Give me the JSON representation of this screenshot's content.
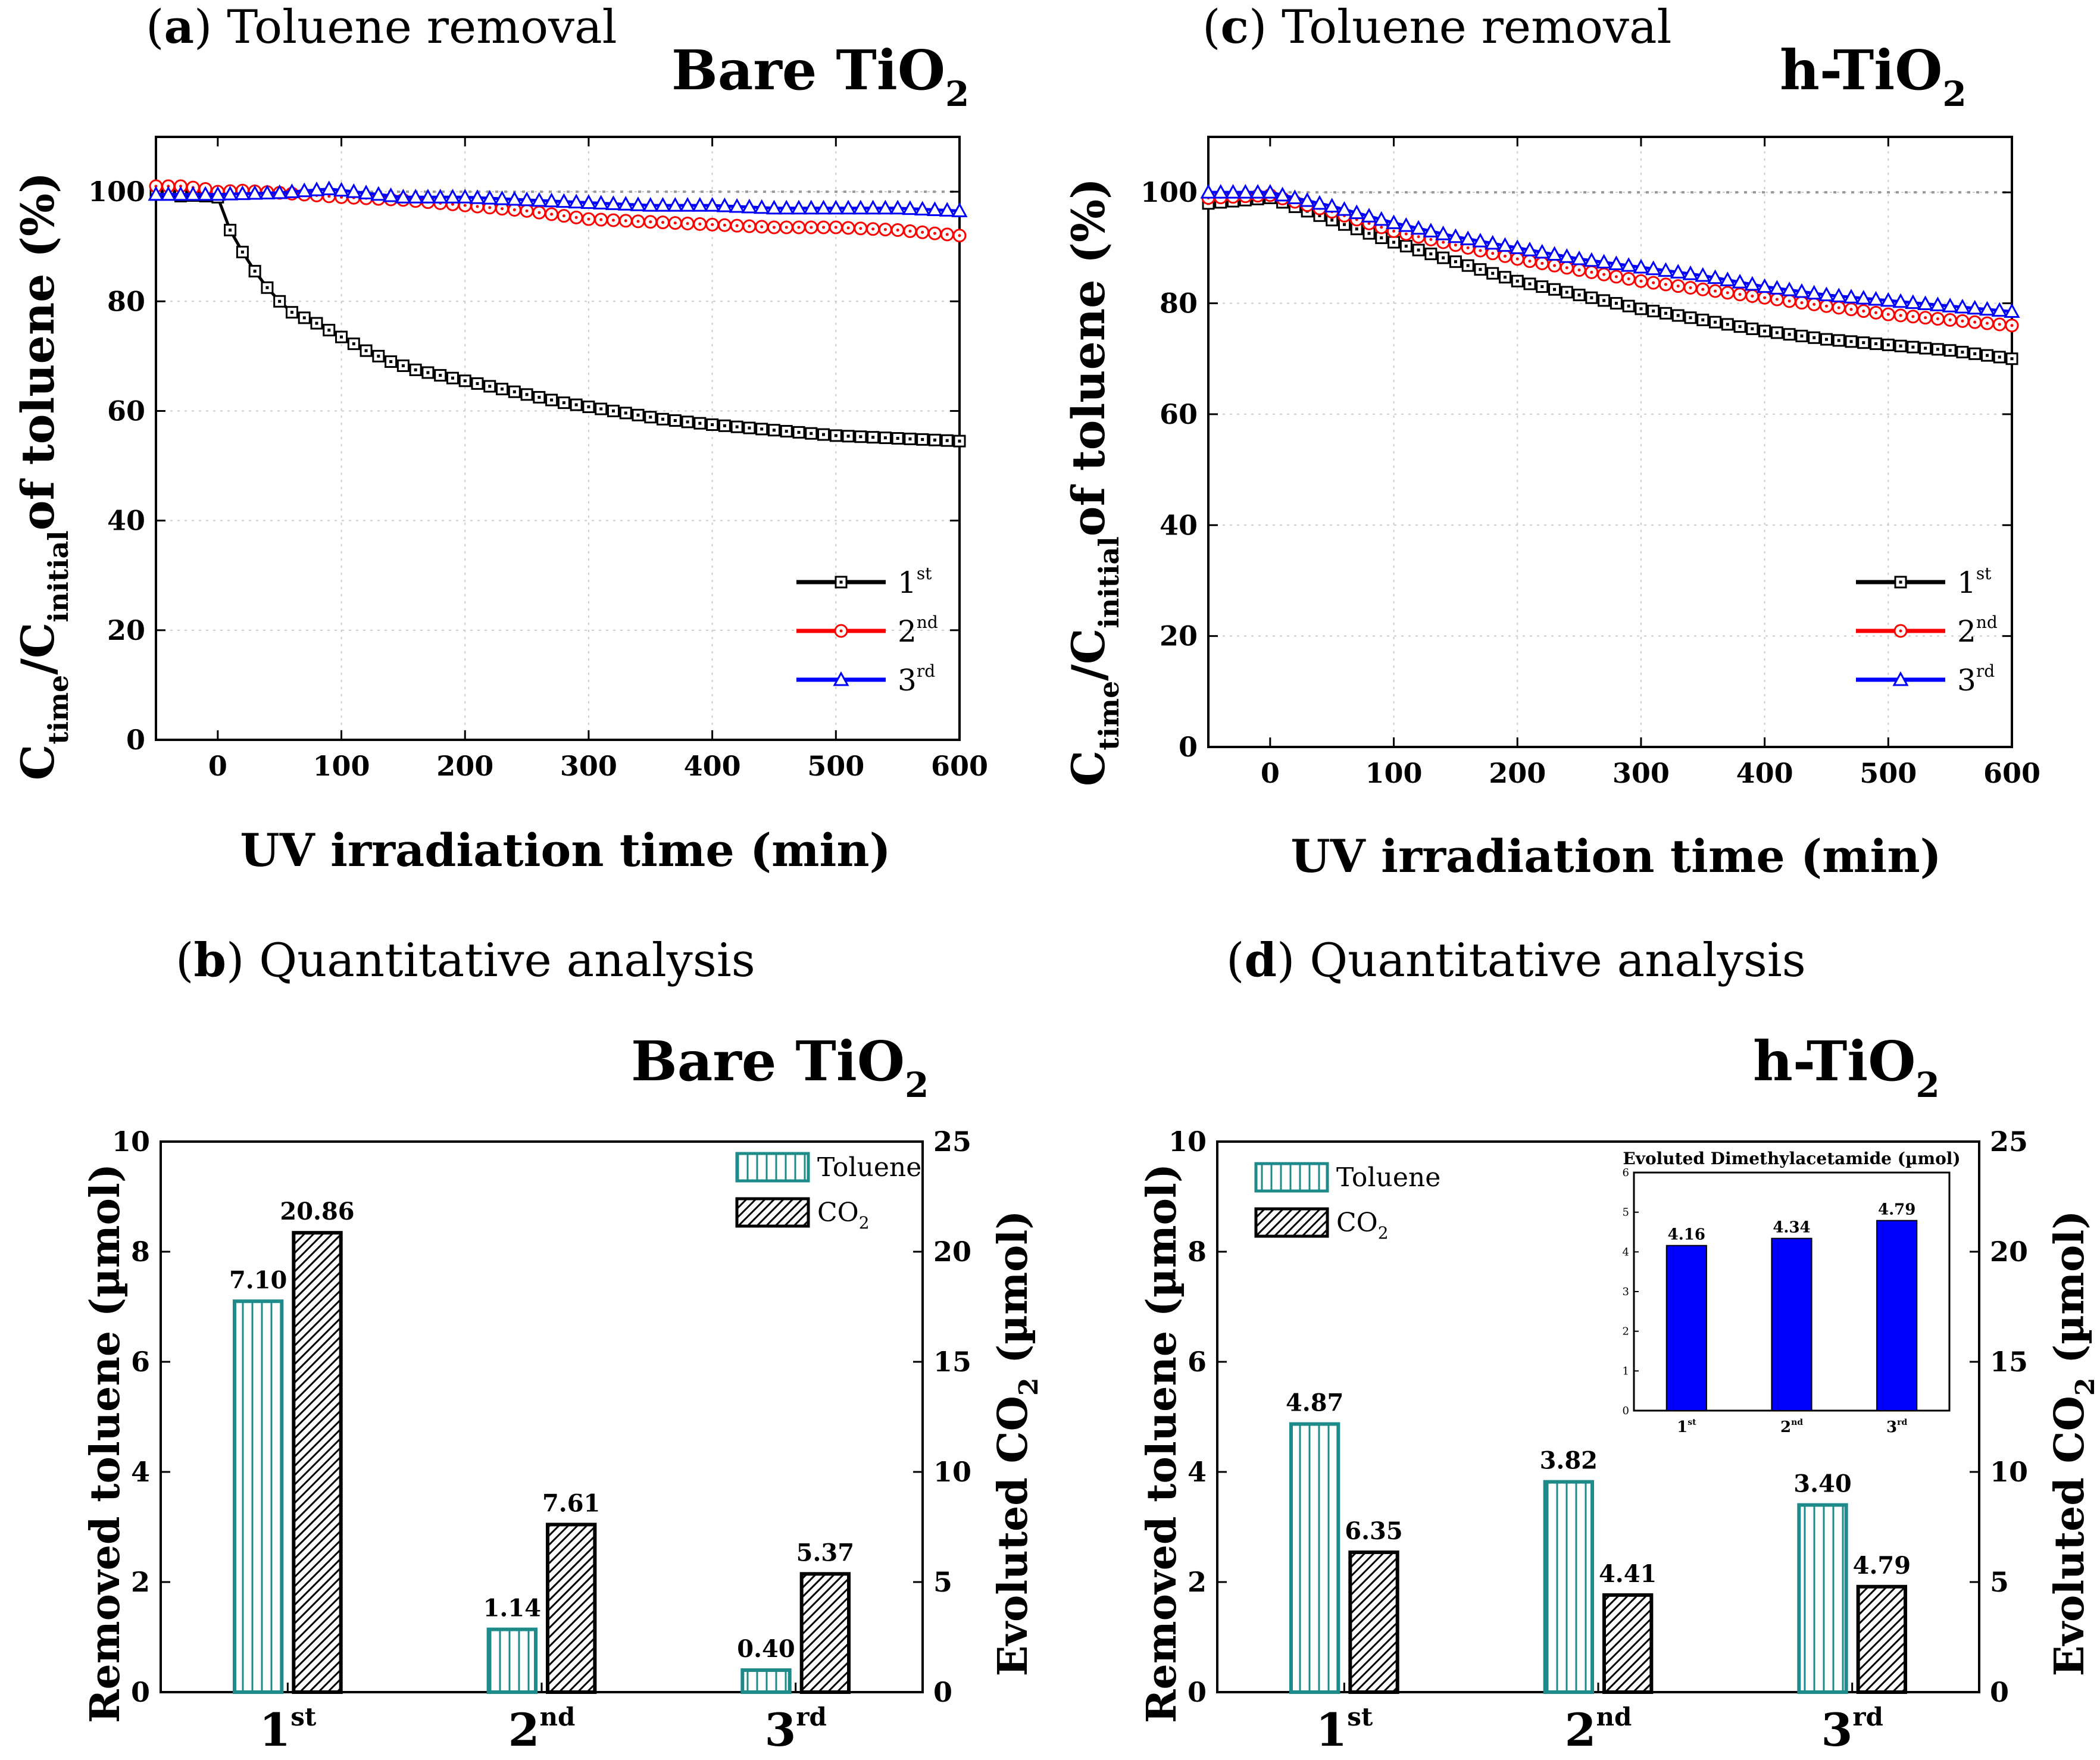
{
  "figure_labels": {
    "a": {
      "letter": "a",
      "text": ") Toluene removal",
      "sample": "Bare TiO",
      "sample_sub": "2"
    },
    "b": {
      "letter": "b",
      "text": ") Quantitative analysis",
      "sample": "Bare TiO",
      "sample_sub": "2"
    },
    "c": {
      "letter": "c",
      "text": ") Toluene removal",
      "sample": "h-TiO",
      "sample_sub": "2"
    },
    "d": {
      "letter": "d",
      "text": ") Quantitative analysis",
      "sample": "h-TiO",
      "sample_sub": "2"
    }
  },
  "line_axes": {
    "xlabel": "UV irradiation time (min)",
    "ylabel": {
      "c": "C",
      "time": "time",
      "slash": "/C",
      "initial": "initial",
      "rest": "of toluene (%)"
    }
  },
  "bar_axes": {
    "ylabel_left": "Removed toluene (µmol)",
    "ylabel_right_pre": "Evoluted CO",
    "ylabel_right_sub": "2",
    "ylabel_right_post": " (µmol)"
  },
  "legend": {
    "runs": [
      {
        "base": "1",
        "sup": "st",
        "color": "#000000",
        "marker": "square"
      },
      {
        "base": "2",
        "sup": "nd",
        "color": "#ff0000",
        "marker": "circle"
      },
      {
        "base": "3",
        "sup": "rd",
        "color": "#0000ff",
        "marker": "triangle"
      }
    ],
    "toluene": "Toluene",
    "co2_pre": "CO",
    "co2_sub": "2"
  },
  "inset": {
    "title": "Evoluted Dimethylacetamide (µmol)",
    "yticks": [
      "0",
      "1",
      "2",
      "3",
      "4",
      "5",
      "6"
    ],
    "categories": [
      {
        "base": "1",
        "sup": "st"
      },
      {
        "base": "2",
        "sup": "nd"
      },
      {
        "base": "3",
        "sup": "rd"
      }
    ],
    "values": [
      4.16,
      4.34,
      4.79
    ],
    "labels": [
      "4.16",
      "4.34",
      "4.79"
    ],
    "ylim": [
      0,
      6
    ],
    "color": "#0000ff"
  },
  "chart_data": [
    {
      "panel": "a",
      "type": "line",
      "title": "(a) Toluene removal — Bare TiO2",
      "xlabel": "UV irradiation time (min)",
      "ylabel": "C_time/C_initial of toluene (%)",
      "xlim": [
        -50,
        600
      ],
      "ylim": [
        0,
        110
      ],
      "xticks": [
        "0",
        "100",
        "200",
        "300",
        "400",
        "500",
        "600"
      ],
      "yticks": [
        "0",
        "20",
        "40",
        "60",
        "80",
        "100"
      ],
      "reference_line": 100,
      "series": [
        {
          "name": "1st",
          "x": [
            -50,
            -40,
            -30,
            -20,
            -10,
            0,
            10,
            20,
            30,
            40,
            50,
            60,
            70,
            80,
            100,
            120,
            140,
            160,
            180,
            200,
            240,
            280,
            320,
            360,
            400,
            450,
            500,
            550,
            600
          ],
          "y": [
            99.5,
            99.5,
            99.2,
            99.3,
            99.2,
            99,
            93,
            89,
            85.5,
            82.5,
            80,
            78,
            77,
            76,
            73.5,
            71,
            69,
            67.5,
            66.5,
            65.5,
            63.5,
            61.5,
            60,
            58.5,
            57.5,
            56.5,
            55.5,
            55,
            54.5
          ]
        },
        {
          "name": "2nd",
          "x": [
            -50,
            -30,
            -10,
            0,
            20,
            50,
            100,
            150,
            200,
            250,
            300,
            350,
            400,
            450,
            500,
            550,
            600
          ],
          "y": [
            101,
            101,
            100.5,
            100,
            100.2,
            99.8,
            99,
            98.5,
            97.5,
            96.5,
            95,
            94.5,
            94,
            93.5,
            93.5,
            93,
            92
          ]
        },
        {
          "name": "3rd",
          "x": [
            -50,
            -10,
            0,
            50,
            90,
            150,
            200,
            250,
            300,
            350,
            400,
            450,
            500,
            550,
            600
          ],
          "y": [
            99.5,
            99.5,
            99.5,
            99.8,
            100.5,
            99,
            99,
            98.5,
            98,
            97.5,
            97.5,
            97,
            97,
            97,
            96.5
          ]
        }
      ]
    },
    {
      "panel": "c",
      "type": "line",
      "title": "(c) Toluene removal — h-TiO2",
      "xlabel": "UV irradiation time (min)",
      "ylabel": "C_time/C_initial of toluene (%)",
      "xlim": [
        -50,
        600
      ],
      "ylim": [
        0,
        110
      ],
      "xticks": [
        "0",
        "100",
        "200",
        "300",
        "400",
        "500",
        "600"
      ],
      "yticks": [
        "0",
        "20",
        "40",
        "60",
        "80",
        "100"
      ],
      "reference_line": 100,
      "series": [
        {
          "name": "1st",
          "x": [
            -50,
            0,
            50,
            100,
            150,
            200,
            250,
            300,
            350,
            400,
            450,
            500,
            550,
            600
          ],
          "y": [
            98,
            99,
            95,
            91,
            87.5,
            84,
            81.5,
            79,
            77,
            75,
            73.5,
            72.5,
            71.5,
            70
          ]
        },
        {
          "name": "2nd",
          "x": [
            -50,
            0,
            50,
            100,
            150,
            200,
            250,
            300,
            350,
            400,
            450,
            500,
            550,
            600
          ],
          "y": [
            99,
            99.5,
            96.5,
            93,
            90.5,
            88,
            86,
            84,
            82.5,
            81,
            79.5,
            78,
            77,
            76
          ]
        },
        {
          "name": "3rd",
          "x": [
            -50,
            0,
            50,
            100,
            150,
            200,
            250,
            300,
            350,
            400,
            450,
            500,
            550,
            600
          ],
          "y": [
            100,
            100,
            97.5,
            94.5,
            92,
            90,
            88,
            86.5,
            85,
            83,
            81.5,
            80.5,
            79.5,
            78.5
          ]
        }
      ]
    },
    {
      "panel": "b",
      "type": "bar",
      "title": "(b) Quantitative analysis — Bare TiO2",
      "categories": [
        "1st",
        "2nd",
        "3rd"
      ],
      "cat_display": [
        {
          "base": "1",
          "sup": "st"
        },
        {
          "base": "2",
          "sup": "nd"
        },
        {
          "base": "3",
          "sup": "rd"
        }
      ],
      "series": [
        {
          "name": "Toluene",
          "axis": "left",
          "values": [
            7.1,
            1.14,
            0.4
          ],
          "labels": [
            "7.10",
            "1.14",
            "0.40"
          ]
        },
        {
          "name": "CO2",
          "axis": "right",
          "values": [
            20.86,
            7.61,
            5.37
          ],
          "labels": [
            "20.86",
            "7.61",
            "5.37"
          ]
        }
      ],
      "ylabel": "Removed toluene (µmol)",
      "ylim": [
        0,
        10
      ],
      "yticks": [
        "0",
        "2",
        "4",
        "6",
        "8",
        "10"
      ],
      "ylabel_right": "Evoluted CO2 (µmol)",
      "ylim_right": [
        0,
        25
      ],
      "yticks_right": [
        "0",
        "5",
        "10",
        "15",
        "20",
        "25"
      ]
    },
    {
      "panel": "d",
      "type": "bar",
      "title": "(d) Quantitative analysis — h-TiO2",
      "categories": [
        "1st",
        "2nd",
        "3rd"
      ],
      "cat_display": [
        {
          "base": "1",
          "sup": "st"
        },
        {
          "base": "2",
          "sup": "nd"
        },
        {
          "base": "3",
          "sup": "rd"
        }
      ],
      "series": [
        {
          "name": "Toluene",
          "axis": "left",
          "values": [
            4.87,
            3.82,
            3.4
          ],
          "labels": [
            "4.87",
            "3.82",
            "3.40"
          ]
        },
        {
          "name": "CO2",
          "axis": "right",
          "values": [
            6.35,
            4.41,
            4.79
          ],
          "labels": [
            "6.35",
            "4.41",
            "4.79"
          ]
        }
      ],
      "ylabel": "Removed toluene (µmol)",
      "ylim": [
        0,
        10
      ],
      "yticks": [
        "0",
        "2",
        "4",
        "6",
        "8",
        "10"
      ],
      "ylabel_right": "Evoluted CO2 (µmol)",
      "ylim_right": [
        0,
        25
      ],
      "yticks_right": [
        "0",
        "5",
        "10",
        "15",
        "20",
        "25"
      ]
    }
  ]
}
